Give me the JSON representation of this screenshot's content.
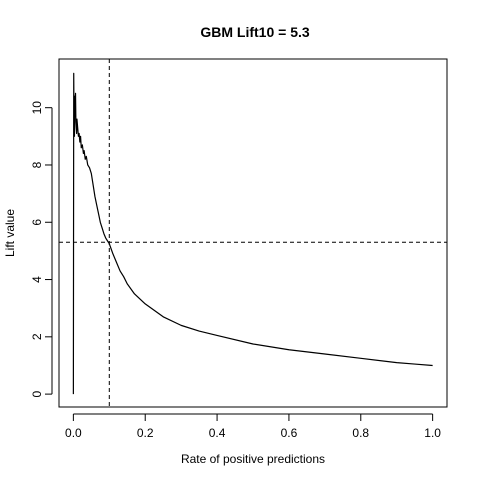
{
  "chart_data": {
    "type": "line",
    "title": "GBM Lift10 =  5.3",
    "xlabel": "Rate of positive predictions",
    "ylabel": "Lift value",
    "xlim": [
      -0.04,
      1.04
    ],
    "ylim": [
      -0.45,
      11.7
    ],
    "x_ticks": [
      0.0,
      0.2,
      0.4,
      0.6,
      0.8,
      1.0
    ],
    "x_tick_labels": [
      "0.0",
      "0.2",
      "0.4",
      "0.6",
      "0.8",
      "1.0"
    ],
    "y_ticks": [
      0,
      2,
      4,
      6,
      8,
      10
    ],
    "y_tick_labels": [
      "0",
      "2",
      "4",
      "6",
      "8",
      "10"
    ],
    "reference_lines": {
      "vertical_x": 0.1,
      "horizontal_y": 5.3,
      "style": "dashed"
    },
    "grid": false,
    "series": [
      {
        "x": [
          0,
          0.001,
          0.002,
          0.003,
          0.004,
          0.005,
          0.006,
          0.007,
          0.008,
          0.009,
          0.01,
          0.012,
          0.014,
          0.016,
          0.018,
          0.02,
          0.022,
          0.025,
          0.028,
          0.03,
          0.033,
          0.036,
          0.04,
          0.045,
          0.05,
          0.055,
          0.06,
          0.065,
          0.07,
          0.075,
          0.08,
          0.085,
          0.09,
          0.095,
          0.1,
          0.11,
          0.12,
          0.13,
          0.14,
          0.15,
          0.17,
          0.2,
          0.25,
          0.3,
          0.35,
          0.4,
          0.5,
          0.6,
          0.7,
          0.8,
          0.9,
          0.95,
          1.0
        ],
        "y": [
          0.0,
          11.2,
          9.2,
          9.0,
          10.4,
          9.8,
          10.5,
          9.5,
          9.3,
          9.1,
          9.6,
          9.3,
          9.0,
          9.1,
          8.8,
          9.0,
          8.6,
          8.7,
          8.4,
          8.5,
          8.2,
          8.3,
          8.0,
          7.9,
          7.7,
          7.3,
          6.9,
          6.6,
          6.3,
          6.0,
          5.8,
          5.6,
          5.45,
          5.35,
          5.25,
          4.9,
          4.6,
          4.3,
          4.1,
          3.85,
          3.5,
          3.15,
          2.7,
          2.4,
          2.2,
          2.05,
          1.75,
          1.55,
          1.4,
          1.25,
          1.1,
          1.05,
          1.0
        ]
      }
    ]
  }
}
